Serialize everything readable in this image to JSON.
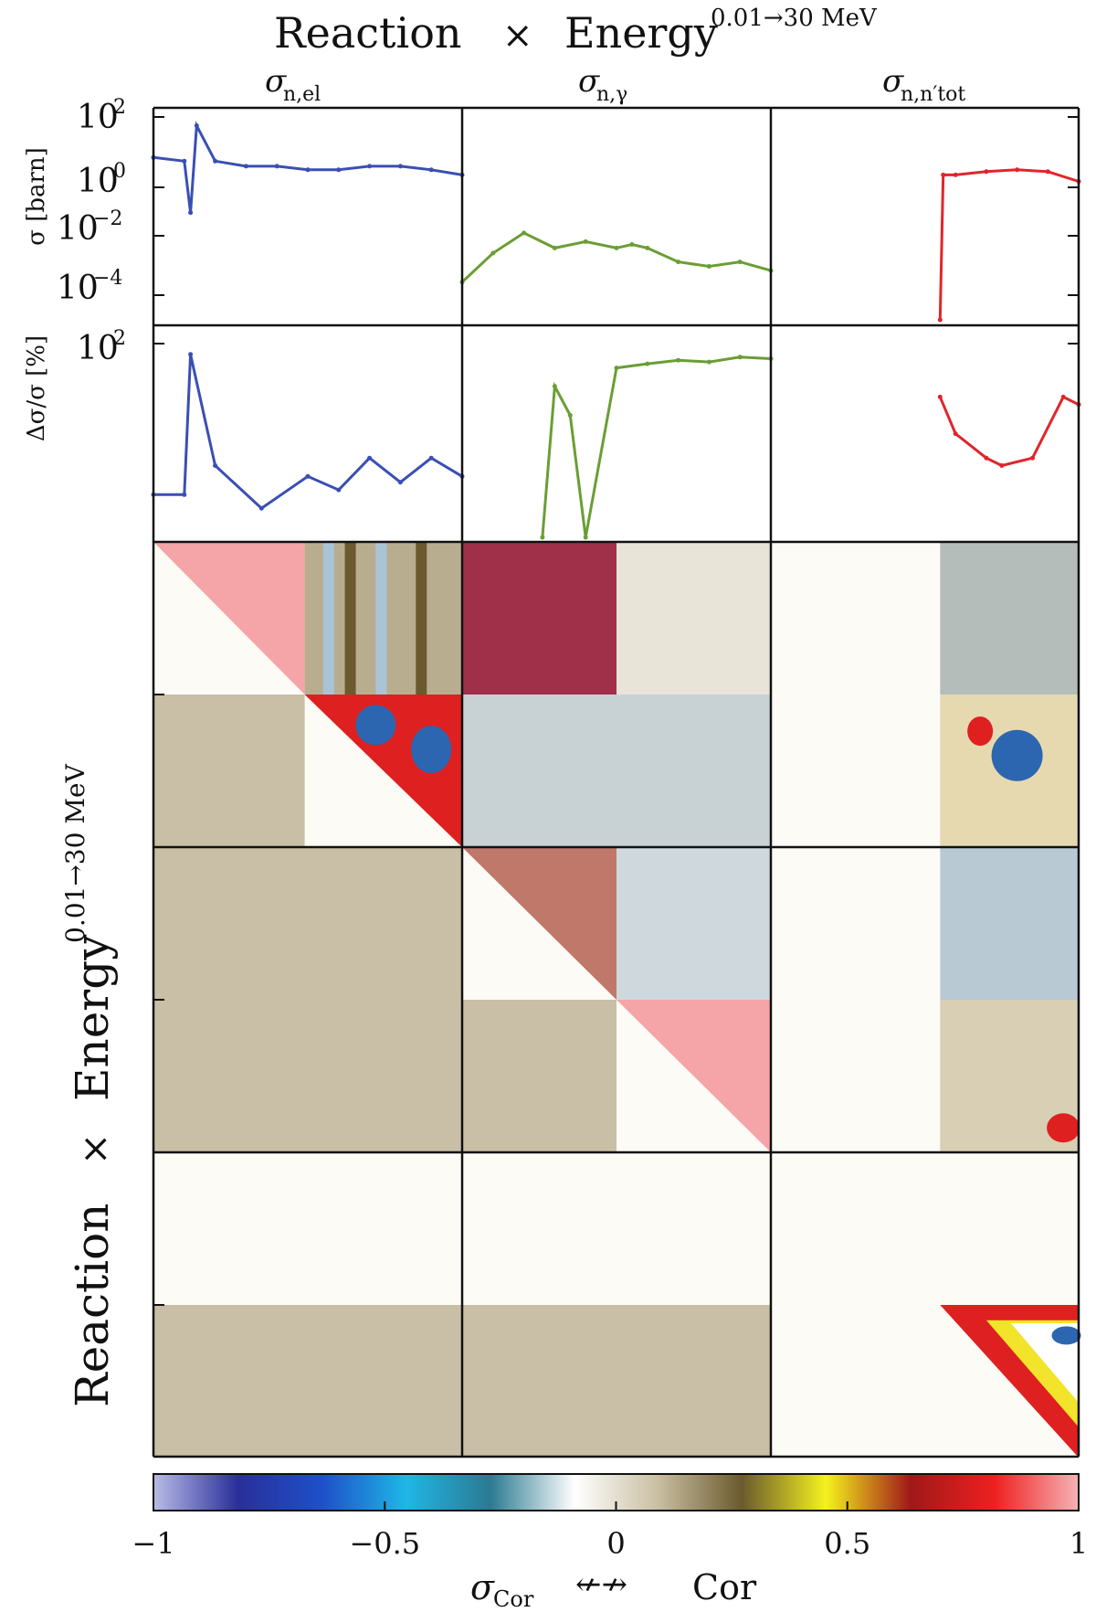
{
  "figure": {
    "title_main": "Reaction",
    "title_times": "×",
    "title_energy": "Energy",
    "title_sup": "0.01→30 MeV"
  },
  "columns": [
    {
      "symbol": "σ",
      "sub": "n,el",
      "color": "#3a4fb3"
    },
    {
      "symbol": "σ",
      "sub": "n,γ",
      "color": "#6a9e34"
    },
    {
      "symbol": "σ",
      "sub": "n,n′tot",
      "color": "#e0262b"
    }
  ],
  "left_axis_title": {
    "main": "Reaction",
    "times": "×",
    "energy": "Energy",
    "sup": "0.01→30 MeV"
  },
  "colorbar": {
    "ticks": [
      "−1",
      "−0.5",
      "0",
      "0.5",
      "1"
    ],
    "tick_values": [
      -1,
      -0.5,
      0,
      0.5,
      1
    ],
    "label_left": "σ",
    "label_left_sub": "Cor",
    "label_arrow": "↚↛",
    "label_right": "Cor",
    "stops": [
      "#b9bce6",
      "#2a2f9a",
      "#1e50c8",
      "#1fb6e6",
      "#2a7a92",
      "#ffffff",
      "#c9bfa2",
      "#6b5a2e",
      "#f4f21e",
      "#a01818",
      "#ee2020",
      "#f7b3b6"
    ]
  },
  "chart_data": [
    {
      "type": "line",
      "panel": "cross-section",
      "ylabel": "σ [barn]",
      "yscale": "log",
      "ylim": [
        1e-05,
        100
      ],
      "yticks": [
        "10^2",
        "10^0",
        "10^-2",
        "10^-4"
      ],
      "series": [
        {
          "name": "σ n,el",
          "x_fraction": [
            0,
            0.1,
            0.12,
            0.14,
            0.2,
            0.3,
            0.4,
            0.5,
            0.6,
            0.7,
            0.8,
            0.9,
            1.0
          ],
          "values": [
            4,
            3,
            0.05,
            50,
            3,
            2,
            2,
            1.5,
            1.5,
            2,
            2,
            1.5,
            1
          ]
        },
        {
          "name": "σ n,γ",
          "x_fraction": [
            0,
            0.1,
            0.2,
            0.3,
            0.4,
            0.5,
            0.55,
            0.6,
            0.7,
            0.8,
            0.9,
            1.0
          ],
          "values": [
            0.0002,
            0.002,
            0.01,
            0.003,
            0.005,
            0.003,
            0.004,
            0.003,
            0.001,
            0.0007,
            0.001,
            0.0005
          ]
        },
        {
          "name": "σ n,n′tot",
          "x_fraction": [
            0.55,
            0.56,
            0.6,
            0.7,
            0.8,
            0.9,
            1.0
          ],
          "values": [
            1e-05,
            1,
            1,
            1.3,
            1.5,
            1.3,
            0.6
          ]
        }
      ]
    },
    {
      "type": "line",
      "panel": "uncertainty",
      "ylabel": "Δσ/σ [%]",
      "yscale": "log",
      "yticks": [
        "10^2"
      ],
      "series": [
        {
          "name": "σ n,el",
          "x_fraction": [
            0,
            0.1,
            0.12,
            0.2,
            0.35,
            0.5,
            0.6,
            0.7,
            0.8,
            0.9,
            1.0
          ],
          "values": [
            0.5,
            0.5,
            100,
            1.5,
            0.3,
            1,
            0.6,
            2,
            0.8,
            2,
            1
          ]
        },
        {
          "name": "σ n,γ",
          "x_fraction": [
            0.26,
            0.3,
            0.35,
            0.4,
            0.5,
            0.6,
            0.7,
            0.8,
            0.9,
            1.0
          ],
          "values": [
            0.1,
            30,
            10,
            0.1,
            60,
            70,
            80,
            75,
            90,
            85
          ]
        },
        {
          "name": "σ n,n′tot",
          "x_fraction": [
            0.55,
            0.6,
            0.7,
            0.75,
            0.85,
            0.95,
            1.0
          ],
          "values": [
            20,
            5,
            2,
            1.5,
            2,
            20,
            15
          ]
        }
      ]
    },
    {
      "type": "heatmap",
      "panel": "correlation-matrix",
      "rows": [
        "σ n,el",
        "σ n,γ",
        "σ n,n′tot"
      ],
      "columns": [
        "σ n,el",
        "σ n,γ",
        "σ n,n′tot"
      ],
      "zlim": [
        -1,
        1
      ]
    }
  ]
}
